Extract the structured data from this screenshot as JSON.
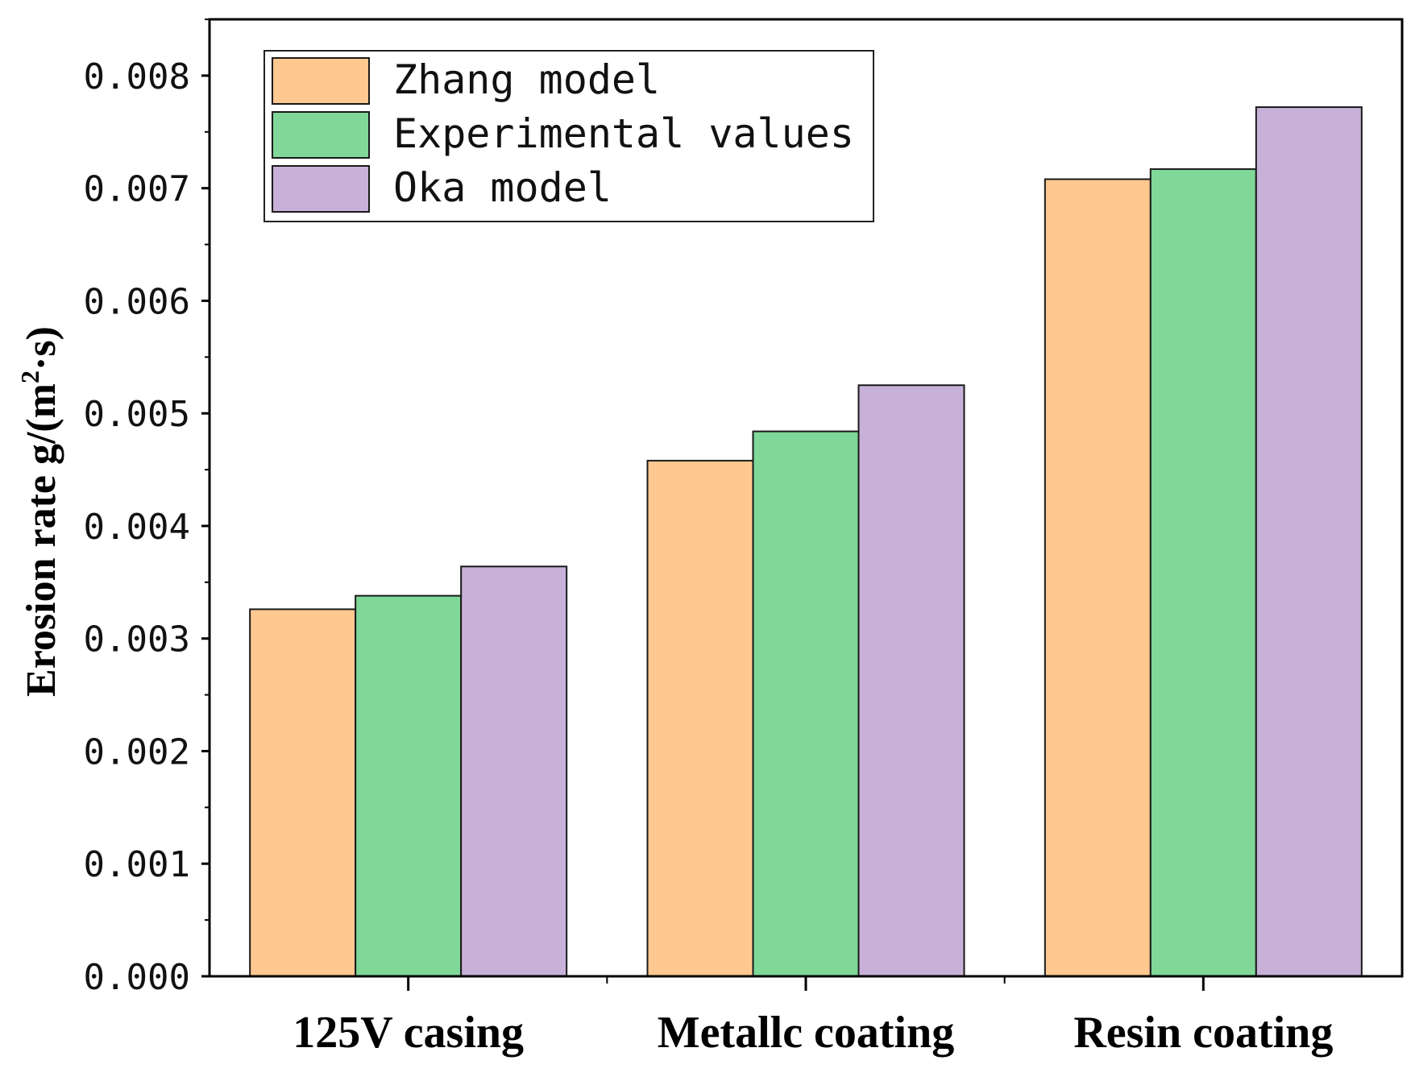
{
  "chart_data": {
    "type": "bar",
    "categories": [
      "125V casing",
      "Metallc coating",
      "Resin coating"
    ],
    "series": [
      {
        "name": "Zhang model",
        "color": "#FFC891",
        "values": [
          0.00326,
          0.00458,
          0.00708
        ]
      },
      {
        "name": "Experimental values",
        "color": "#7FD898",
        "values": [
          0.00338,
          0.00484,
          0.00717
        ]
      },
      {
        "name": "Oka model",
        "color": "#C8B1D8",
        "values": [
          0.00364,
          0.00525,
          0.00772
        ]
      }
    ],
    "ylabel_main": "Erosion rate  g/(m",
    "ylabel_sup": "2",
    "ylabel_end": "·s)",
    "xlabel": "",
    "ylim": [
      0,
      0.0085
    ],
    "yticks": [
      0.0,
      0.001,
      0.002,
      0.003,
      0.004,
      0.005,
      0.006,
      0.007,
      0.008
    ],
    "ytick_labels": [
      "0.000",
      "0.001",
      "0.002",
      "0.003",
      "0.004",
      "0.005",
      "0.006",
      "0.007",
      "0.008"
    ],
    "legend_position": "top-left",
    "grid": false
  }
}
